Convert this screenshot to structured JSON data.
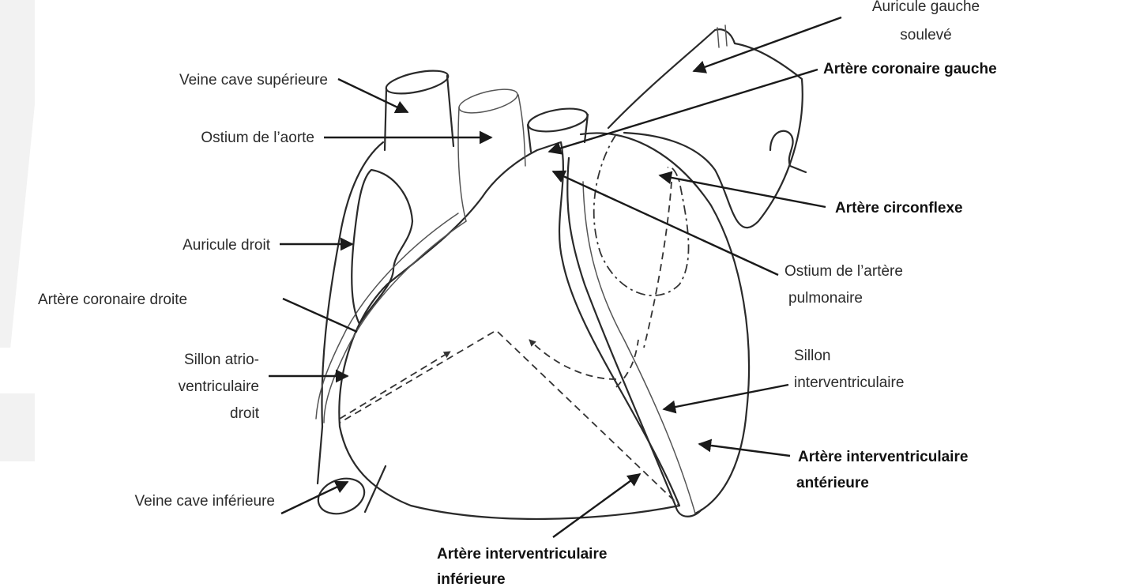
{
  "labels": {
    "auricule_gauche": [
      "Auricule gauche",
      "soulevé"
    ],
    "artere_coronaire_gauche": "Artère coronaire gauche",
    "veine_cave_superieure": "Veine cave supérieure",
    "ostium_aorte": "Ostium de l’aorte",
    "artere_circonflexe": "Artère circonflexe",
    "auricule_droit": "Auricule droit",
    "ostium_artere_pulmonaire": [
      "Ostium de l’artère",
      "pulmonaire"
    ],
    "artere_coronaire_droite": "Artère coronaire droite",
    "sillon_atrio": [
      "Sillon atrio-",
      "ventriculaire",
      "droit"
    ],
    "sillon_interventriculaire": [
      "Sillon",
      "interventriculaire"
    ],
    "artere_iv_anterieure": [
      "Artère interventriculaire",
      "antérieure"
    ],
    "veine_cave_inferieure": "Veine cave inférieure",
    "artere_iv_inferieure": [
      "Artère interventriculaire",
      "inférieure"
    ]
  }
}
